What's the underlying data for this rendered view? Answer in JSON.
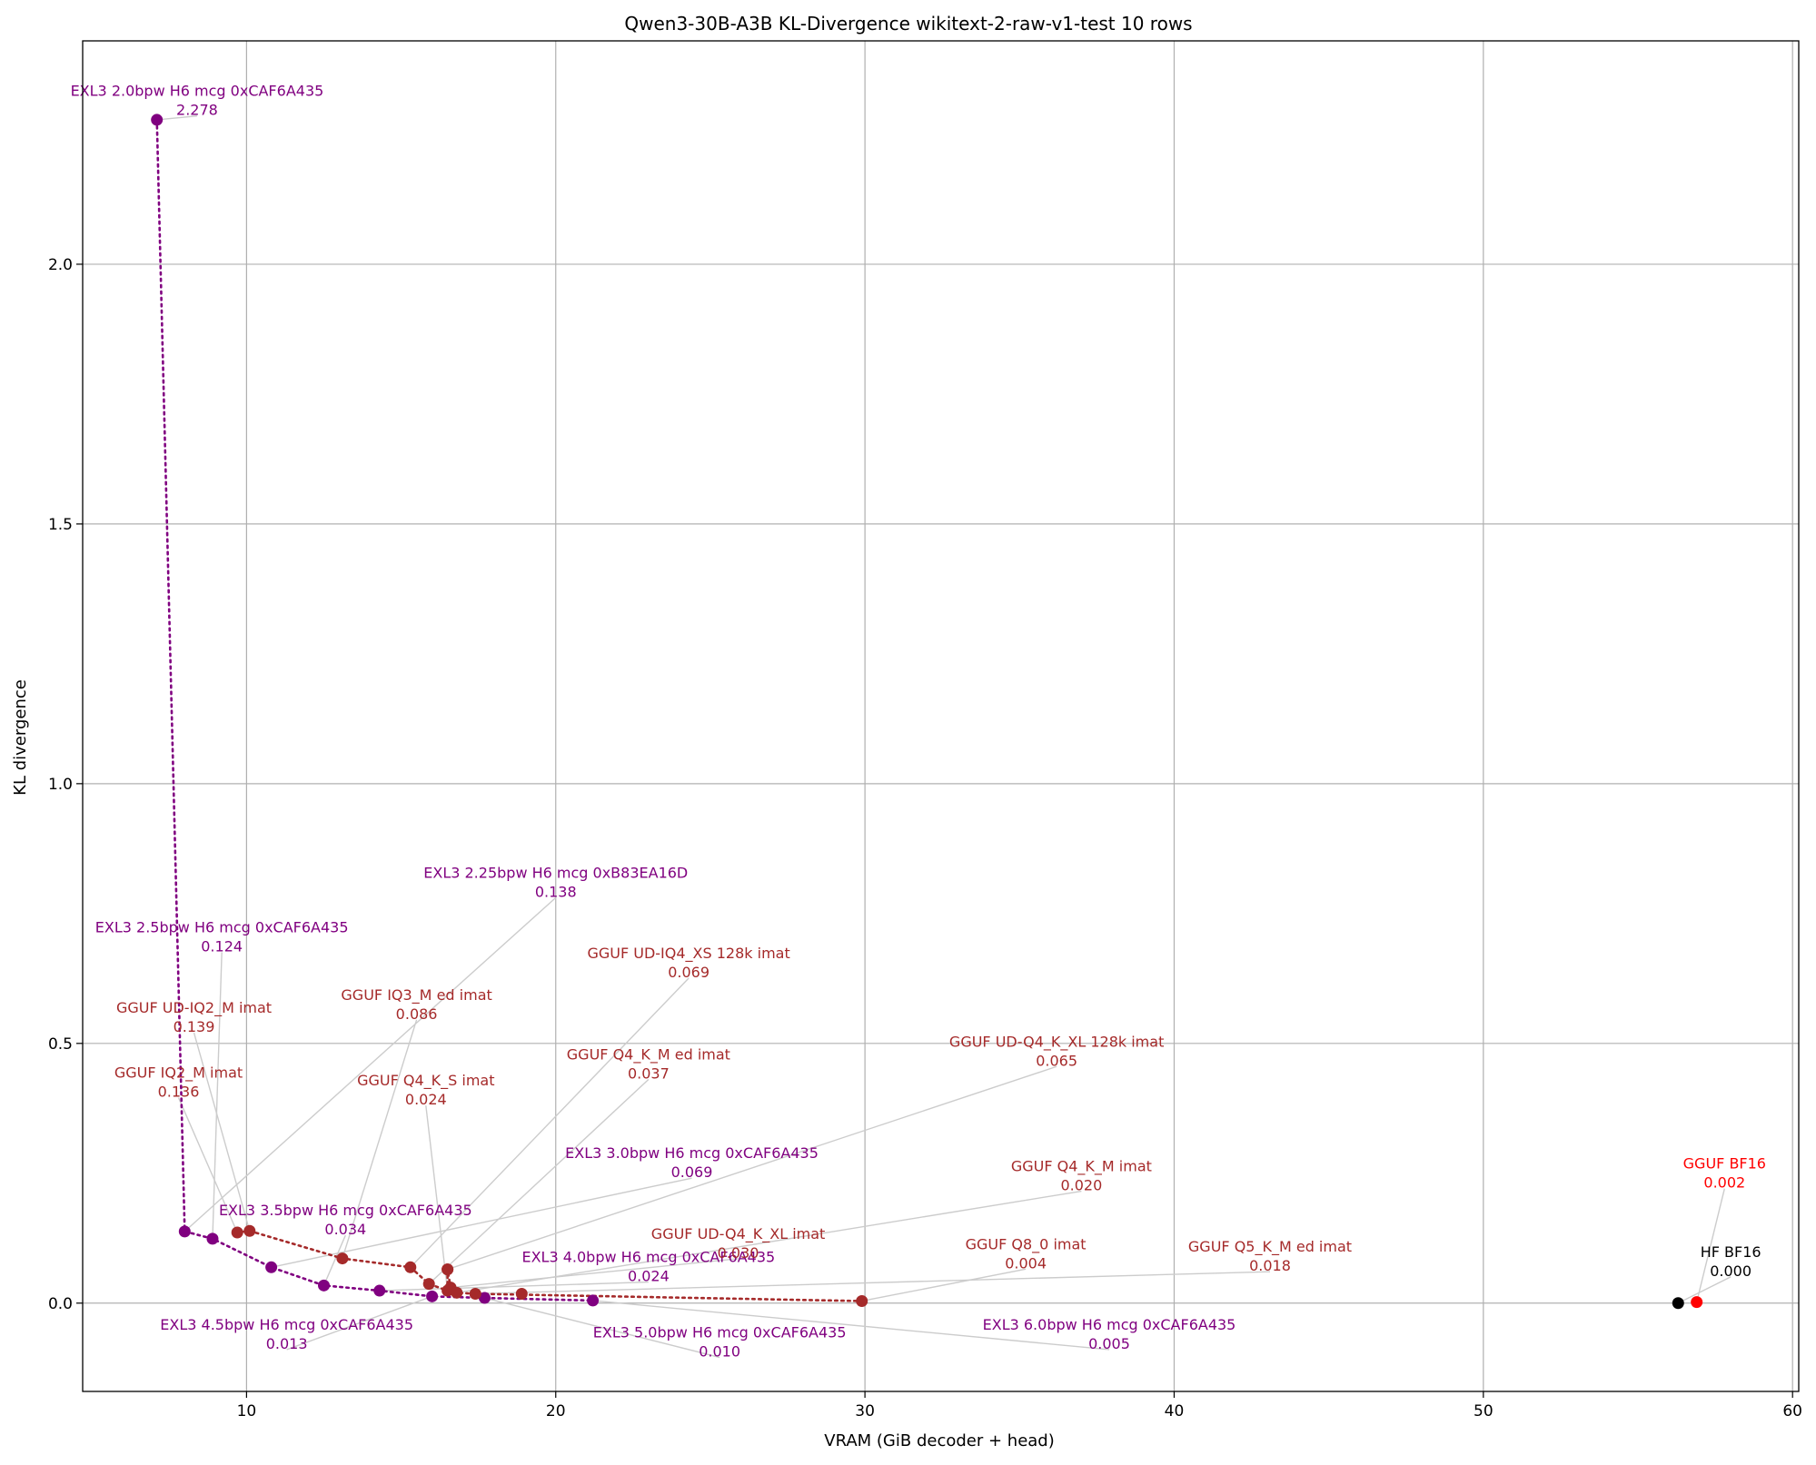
{
  "chart_data": {
    "type": "scatter",
    "title": "Qwen3-30B-A3B KL-Divergence wikitext-2-raw-v1-test 10 rows",
    "xlabel": "VRAM (GiB decoder + head)",
    "ylabel": "KL divergence",
    "xlim": [
      4.7,
      60.2
    ],
    "ylim": [
      -0.17,
      2.43
    ],
    "xticks": [
      10,
      20,
      30,
      40,
      50,
      60
    ],
    "yticks": [
      0.0,
      0.5,
      1.0,
      1.5,
      2.0
    ],
    "ytick_labels": [
      "0.0",
      "0.5",
      "1.0",
      "1.5",
      "2.0"
    ],
    "grid": true,
    "colors": {
      "exl3": "#800080",
      "gguf": "#a52a2a",
      "gguf_bf16": "#ff0000",
      "hf": "#000000",
      "leader": "#cccccc",
      "grid": "#b0b0b0"
    },
    "series": [
      {
        "name": "EXL3",
        "color": "#800080",
        "dotted_line": true,
        "points": [
          {
            "label": "EXL3 2.0bpw H6 mcg 0xCAF6A435",
            "value": "2.278",
            "x": 7.1,
            "y": 2.278,
            "lx": 8.4,
            "ly": 2.31
          },
          {
            "label": "EXL3 2.25bpw H6 mcg 0xB83EA16D",
            "value": "0.138",
            "x": 8.0,
            "y": 0.138,
            "lx": 20.0,
            "ly": 0.805
          },
          {
            "label": "EXL3 2.5bpw H6 mcg 0xCAF6A435",
            "value": "0.124",
            "x": 8.9,
            "y": 0.124,
            "lx": 9.2,
            "ly": 0.7
          },
          {
            "label": "EXL3 3.0bpw H6 mcg 0xCAF6A435",
            "value": "0.069",
            "x": 10.8,
            "y": 0.069,
            "lx": 24.4,
            "ly": 0.265
          },
          {
            "label": "EXL3 3.5bpw H6 mcg 0xCAF6A435",
            "value": "0.034",
            "x": 12.5,
            "y": 0.034,
            "lx": 13.2,
            "ly": 0.155
          },
          {
            "label": "EXL3 4.0bpw H6 mcg 0xCAF6A435",
            "value": "0.024",
            "x": 14.3,
            "y": 0.024,
            "lx": 23.0,
            "ly": 0.065
          },
          {
            "label": "EXL3 4.5bpw H6 mcg 0xCAF6A435",
            "value": "0.013",
            "x": 16.0,
            "y": 0.013,
            "lx": 11.3,
            "ly": -0.065
          },
          {
            "label": "EXL3 5.0bpw H6 mcg 0xCAF6A435",
            "value": "0.010",
            "x": 17.7,
            "y": 0.01,
            "lx": 25.3,
            "ly": -0.08
          },
          {
            "label": "EXL3 6.0bpw H6 mcg 0xCAF6A435",
            "value": "0.005",
            "x": 21.2,
            "y": 0.005,
            "lx": 37.9,
            "ly": -0.065
          }
        ]
      },
      {
        "name": "GGUF",
        "color": "#a52a2a",
        "dotted_line": true,
        "points": [
          {
            "label": "GGUF IQ2_M imat",
            "value": "0.136",
            "x": 9.7,
            "y": 0.136,
            "lx": 7.8,
            "ly": 0.42
          },
          {
            "label": "GGUF UD-IQ2_M imat",
            "value": "0.139",
            "x": 10.1,
            "y": 0.139,
            "lx": 8.3,
            "ly": 0.545
          },
          {
            "label": "GGUF IQ3_M ed imat",
            "value": "0.086",
            "x": 13.1,
            "y": 0.086,
            "lx": 15.5,
            "ly": 0.57
          },
          {
            "label": "GGUF UD-IQ4_XS 128k imat",
            "value": "0.069",
            "x": 15.3,
            "y": 0.069,
            "lx": 24.3,
            "ly": 0.65
          },
          {
            "label": "GGUF Q4_K_S imat",
            "value": "0.024",
            "x": 16.5,
            "y": 0.024,
            "lx": 15.8,
            "ly": 0.405
          },
          {
            "label": "GGUF Q4_K_M ed imat",
            "value": "0.037",
            "x": 15.9,
            "y": 0.037,
            "lx": 23.0,
            "ly": 0.455
          },
          {
            "label": "GGUF UD-Q4_K_XL imat",
            "value": "0.030",
            "x": 16.6,
            "y": 0.03,
            "lx": 25.9,
            "ly": 0.11
          },
          {
            "label": "GGUF Q4_K_M imat",
            "value": "0.020",
            "x": 16.8,
            "y": 0.02,
            "lx": 37.0,
            "ly": 0.24
          },
          {
            "label": "GGUF UD-Q4_K_XL 128k imat",
            "value": "0.065",
            "x": 16.5,
            "y": 0.065,
            "lx": 36.2,
            "ly": 0.48
          },
          {
            "label": "GGUF Q5_K_M ed imat",
            "value": "0.018",
            "x": 17.4,
            "y": 0.018,
            "lx": 43.1,
            "ly": 0.085
          },
          {
            "label": "GGUF Q8_0 imat",
            "value": "0.004",
            "x": 29.9,
            "y": 0.004,
            "lx": 35.2,
            "ly": 0.09
          }
        ]
      },
      {
        "name": "GGUF BF16",
        "color": "#ff0000",
        "dotted_line": false,
        "points": [
          {
            "label": "GGUF BF16",
            "value": "0.002",
            "x": 56.9,
            "y": 0.002,
            "lx": 57.8,
            "ly": 0.245
          }
        ]
      },
      {
        "name": "HF BF16",
        "color": "#000000",
        "dotted_line": false,
        "points": [
          {
            "label": "HF BF16",
            "value": "0.000",
            "x": 56.3,
            "y": 0.0,
            "lx": 58.0,
            "ly": 0.075
          }
        ]
      }
    ],
    "extra_points": [
      {
        "x": 16.5,
        "y": 0.065,
        "color": "#a52a2a"
      },
      {
        "x": 18.9,
        "y": 0.018,
        "color": "#a52a2a"
      }
    ]
  }
}
